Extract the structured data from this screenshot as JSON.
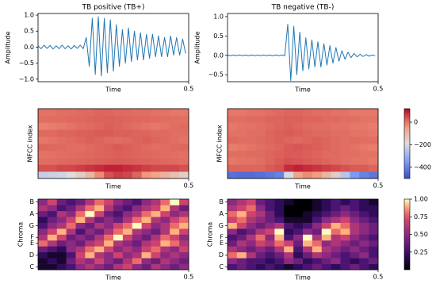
{
  "chart_data": [
    {
      "type": "line",
      "title": "TB positive (TB+)",
      "x_label": "Time",
      "y_label": "Amplitude",
      "color": "#1f77b4",
      "x": [
        0,
        0.01,
        0.02,
        0.03,
        0.04,
        0.05,
        0.06,
        0.07,
        0.08,
        0.09,
        0.1,
        0.11,
        0.12,
        0.13,
        0.14,
        0.15,
        0.16,
        0.17,
        0.18,
        0.19,
        0.2,
        0.21,
        0.22,
        0.23,
        0.24,
        0.25,
        0.26,
        0.27,
        0.28,
        0.29,
        0.3,
        0.31,
        0.32,
        0.33,
        0.34,
        0.35,
        0.36,
        0.37,
        0.38,
        0.39,
        0.4,
        0.41,
        0.42,
        0.43,
        0.44,
        0.45,
        0.46,
        0.47,
        0.48,
        0.49
      ],
      "values": [
        0.04,
        -0.05,
        0.06,
        -0.04,
        0.05,
        -0.06,
        0.04,
        -0.05,
        0.06,
        -0.05,
        0.04,
        -0.06,
        0.05,
        -0.04,
        0.06,
        -0.05,
        0.3,
        -0.6,
        0.9,
        -0.85,
        0.95,
        -0.9,
        0.9,
        -0.8,
        0.85,
        -0.75,
        0.7,
        -0.6,
        0.55,
        -0.5,
        0.6,
        -0.45,
        0.5,
        -0.4,
        0.45,
        -0.4,
        0.4,
        -0.35,
        0.4,
        -0.3,
        0.35,
        -0.3,
        0.3,
        -0.3,
        0.35,
        -0.25,
        0.3,
        -0.25,
        0.25,
        -0.2
      ],
      "xlim": [
        0,
        0.5
      ],
      "xticks": [
        0.5
      ],
      "ylim": [
        -1.08,
        1.05
      ],
      "yticks": [
        {
          "value": -1.0,
          "label": "−1.0"
        },
        {
          "value": -0.5,
          "label": "−0.5"
        },
        {
          "value": 0.0,
          "label": "0.0"
        },
        {
          "value": 0.5,
          "label": "0.5"
        },
        {
          "value": 1.0,
          "label": "1.0"
        }
      ]
    },
    {
      "type": "line",
      "title": "TB negative (TB-)",
      "x_label": "Time",
      "y_label": "Amplitude",
      "color": "#1f77b4",
      "x": [
        0,
        0.01,
        0.02,
        0.03,
        0.04,
        0.05,
        0.06,
        0.07,
        0.08,
        0.09,
        0.1,
        0.11,
        0.12,
        0.13,
        0.14,
        0.15,
        0.16,
        0.17,
        0.18,
        0.19,
        0.2,
        0.21,
        0.22,
        0.23,
        0.24,
        0.25,
        0.26,
        0.27,
        0.28,
        0.29,
        0.3,
        0.31,
        0.32,
        0.33,
        0.34,
        0.35,
        0.36,
        0.37,
        0.38,
        0.39,
        0.4,
        0.41,
        0.42,
        0.43,
        0.44,
        0.45,
        0.46,
        0.47,
        0.48,
        0.49
      ],
      "values": [
        0.01,
        -0.01,
        0.01,
        -0.01,
        0.01,
        -0.01,
        0.01,
        -0.01,
        0.01,
        -0.01,
        0.01,
        -0.01,
        0.01,
        -0.01,
        0.01,
        -0.01,
        0.01,
        -0.01,
        0.01,
        -0.01,
        0.8,
        -0.65,
        0.75,
        -0.5,
        0.6,
        -0.4,
        0.45,
        -0.35,
        0.4,
        -0.3,
        0.35,
        -0.3,
        0.3,
        -0.25,
        0.25,
        -0.2,
        0.2,
        -0.15,
        0.12,
        -0.1,
        0.08,
        -0.06,
        0.05,
        -0.04,
        0.03,
        -0.03,
        0.02,
        -0.02,
        0.01,
        -0.01
      ],
      "xlim": [
        0,
        0.5
      ],
      "xticks": [
        0.5
      ],
      "ylim": [
        -0.68,
        1.08
      ],
      "yticks": [
        {
          "value": -0.5,
          "label": "−0.5"
        },
        {
          "value": 0.0,
          "label": "0.0"
        },
        {
          "value": 0.5,
          "label": "0.5"
        },
        {
          "value": 1.0,
          "label": "1.0"
        }
      ]
    },
    {
      "type": "heatmap",
      "x_label": "Time",
      "y_label": "MFCC index",
      "cmap": "coolwarm",
      "clim": [
        -500,
        120
      ],
      "xlim": [
        0,
        0.5
      ],
      "xticks": [
        0.5
      ],
      "values": [
        [
          -230,
          -220,
          -210,
          -190,
          -150,
          -100,
          -20,
          40,
          60,
          50,
          20,
          -30,
          -60,
          -90,
          -120,
          -150
        ],
        [
          40,
          40,
          50,
          50,
          60,
          70,
          80,
          90,
          90,
          80,
          70,
          60,
          50,
          50,
          50,
          40
        ],
        [
          10,
          12,
          15,
          18,
          20,
          22,
          25,
          28,
          30,
          28,
          25,
          22,
          20,
          18,
          15,
          12
        ],
        [
          5,
          8,
          10,
          12,
          15,
          18,
          20,
          22,
          25,
          22,
          20,
          18,
          15,
          12,
          10,
          8
        ],
        [
          20,
          18,
          15,
          12,
          10,
          15,
          20,
          25,
          30,
          25,
          20,
          15,
          10,
          12,
          15,
          18
        ],
        [
          0,
          5,
          10,
          15,
          20,
          25,
          20,
          15,
          10,
          15,
          20,
          25,
          20,
          15,
          10,
          5
        ],
        [
          15,
          15,
          20,
          20,
          25,
          25,
          30,
          30,
          25,
          25,
          20,
          20,
          15,
          15,
          10,
          10
        ],
        [
          -10,
          -5,
          0,
          5,
          10,
          15,
          20,
          25,
          20,
          15,
          10,
          5,
          0,
          5,
          10,
          15
        ],
        [
          10,
          12,
          14,
          16,
          18,
          20,
          22,
          24,
          22,
          20,
          18,
          16,
          14,
          12,
          10,
          8
        ],
        [
          5,
          5,
          10,
          10,
          15,
          15,
          20,
          20,
          15,
          15,
          10,
          10,
          5,
          5,
          0,
          0
        ]
      ]
    },
    {
      "type": "heatmap",
      "x_label": "Time",
      "y_label": "MFCC index",
      "cmap": "coolwarm",
      "clim": [
        -500,
        120
      ],
      "xlim": [
        0,
        0.5
      ],
      "xticks": [
        0.5
      ],
      "colorbar": {
        "ticks": [
          {
            "value": 0,
            "label": "0"
          },
          {
            "value": -200,
            "label": "−200"
          },
          {
            "value": -400,
            "label": "−400"
          }
        ]
      },
      "values": [
        [
          -430,
          -440,
          -440,
          -430,
          -420,
          -400,
          -200,
          -60,
          -20,
          -40,
          -100,
          -150,
          -250,
          -350,
          -400,
          -420
        ],
        [
          20,
          20,
          20,
          20,
          30,
          40,
          80,
          90,
          80,
          70,
          60,
          50,
          40,
          30,
          30,
          20
        ],
        [
          0,
          5,
          5,
          10,
          20,
          30,
          40,
          35,
          30,
          25,
          20,
          15,
          10,
          5,
          5,
          0
        ],
        [
          10,
          10,
          15,
          15,
          20,
          25,
          30,
          30,
          25,
          20,
          15,
          15,
          10,
          10,
          5,
          5
        ],
        [
          -5,
          0,
          5,
          10,
          15,
          20,
          30,
          35,
          30,
          25,
          20,
          15,
          10,
          5,
          0,
          -5
        ],
        [
          15,
          10,
          10,
          15,
          20,
          25,
          20,
          15,
          20,
          25,
          20,
          15,
          10,
          15,
          10,
          10
        ],
        [
          5,
          5,
          10,
          10,
          20,
          25,
          30,
          25,
          20,
          15,
          15,
          10,
          10,
          5,
          5,
          0
        ],
        [
          0,
          5,
          5,
          10,
          15,
          20,
          25,
          20,
          15,
          10,
          10,
          5,
          5,
          0,
          0,
          -5
        ],
        [
          10,
          10,
          15,
          15,
          20,
          20,
          25,
          25,
          20,
          20,
          15,
          15,
          10,
          10,
          5,
          5
        ],
        [
          0,
          0,
          5,
          5,
          10,
          15,
          20,
          20,
          15,
          10,
          10,
          5,
          5,
          0,
          0,
          0
        ]
      ]
    },
    {
      "type": "heatmap",
      "x_label": "Time",
      "y_label": "Chroma",
      "cmap": "magma",
      "clim": [
        0,
        1
      ],
      "xlim": [
        0,
        0.5
      ],
      "xticks": [
        0.5
      ],
      "y_categories": [
        "C",
        null,
        "D",
        null,
        "E",
        "F",
        null,
        "G",
        null,
        "A",
        null,
        "B"
      ],
      "values": [
        [
          0.1,
          0.1,
          0.2,
          0.3,
          0.5,
          0.6,
          0.5,
          0.4,
          0.6,
          0.7,
          0.5,
          0.4,
          0.6,
          0.5,
          0.4,
          0.5
        ],
        [
          0.1,
          0.2,
          0.1,
          0.4,
          0.6,
          0.5,
          0.7,
          0.5,
          0.4,
          0.6,
          0.8,
          0.5,
          0.4,
          0.6,
          0.5,
          0.4
        ],
        [
          0.2,
          0.1,
          0.1,
          0.3,
          0.7,
          0.9,
          0.6,
          0.5,
          0.7,
          0.5,
          0.6,
          0.9,
          0.7,
          0.5,
          0.6,
          0.5
        ],
        [
          0.4,
          0.3,
          0.2,
          0.5,
          0.6,
          0.8,
          0.9,
          0.7,
          0.5,
          0.6,
          0.5,
          0.7,
          0.8,
          0.6,
          0.5,
          0.7
        ],
        [
          0.8,
          0.6,
          0.4,
          0.5,
          0.4,
          0.6,
          0.7,
          0.9,
          0.6,
          0.5,
          0.4,
          0.6,
          0.7,
          0.9,
          0.8,
          0.6
        ],
        [
          0.6,
          0.9,
          0.7,
          0.4,
          0.5,
          0.4,
          0.6,
          0.8,
          1.0,
          0.7,
          0.5,
          0.4,
          0.6,
          0.8,
          0.7,
          0.5
        ],
        [
          0.5,
          0.7,
          0.9,
          0.6,
          0.3,
          0.5,
          0.4,
          0.6,
          0.8,
          0.9,
          0.6,
          0.5,
          0.4,
          0.6,
          0.9,
          0.7
        ],
        [
          0.3,
          0.5,
          0.6,
          0.8,
          0.5,
          0.4,
          0.6,
          0.5,
          0.7,
          0.8,
          1.0,
          0.7,
          0.5,
          0.6,
          0.8,
          0.9
        ],
        [
          0.2,
          0.4,
          0.5,
          0.7,
          0.9,
          0.6,
          0.4,
          0.5,
          0.4,
          0.6,
          0.8,
          0.9,
          0.6,
          0.5,
          0.7,
          0.8
        ],
        [
          0.4,
          0.3,
          0.6,
          0.5,
          0.8,
          1.0,
          0.7,
          0.4,
          0.3,
          0.5,
          0.6,
          0.8,
          0.9,
          0.7,
          0.5,
          0.6
        ],
        [
          0.6,
          0.5,
          0.3,
          0.4,
          0.6,
          0.8,
          0.9,
          0.6,
          0.4,
          0.3,
          0.5,
          0.6,
          0.7,
          0.9,
          0.6,
          0.4
        ],
        [
          0.5,
          0.7,
          0.4,
          0.3,
          0.4,
          0.6,
          0.8,
          0.7,
          0.5,
          0.4,
          0.3,
          0.5,
          0.6,
          0.8,
          1.0,
          0.7
        ]
      ]
    },
    {
      "type": "heatmap",
      "x_label": "Time",
      "y_label": "Chroma",
      "cmap": "magma",
      "clim": [
        0,
        1
      ],
      "xlim": [
        0,
        0.5
      ],
      "xticks": [
        0.5
      ],
      "y_categories": [
        "C",
        null,
        "D",
        null,
        "E",
        "F",
        null,
        "G",
        null,
        "A",
        null,
        "B"
      ],
      "colorbar": {
        "ticks": [
          {
            "value": 0.25,
            "label": "0.25"
          },
          {
            "value": 0.5,
            "label": "0.50"
          },
          {
            "value": 0.75,
            "label": "0.75"
          },
          {
            "value": 1.0,
            "label": "1.00"
          }
        ]
      },
      "values": [
        [
          0.3,
          0.4,
          0.3,
          0.2,
          0.3,
          0.2,
          0.1,
          0.2,
          0.3,
          0.4,
          0.3,
          0.2,
          0.3,
          0.4,
          0.3,
          0.2
        ],
        [
          0.5,
          0.4,
          0.3,
          0.3,
          0.2,
          0.3,
          0.5,
          0.4,
          0.2,
          0.3,
          0.4,
          0.5,
          0.3,
          0.2,
          0.3,
          0.4
        ],
        [
          0.8,
          0.9,
          0.6,
          0.4,
          0.3,
          0.4,
          0.6,
          0.2,
          0.4,
          0.6,
          0.5,
          0.4,
          0.3,
          0.4,
          0.5,
          0.3
        ],
        [
          0.6,
          0.5,
          0.4,
          0.5,
          0.4,
          0.6,
          0.9,
          0.3,
          0.6,
          0.9,
          0.6,
          0.5,
          0.4,
          0.5,
          0.4,
          0.3
        ],
        [
          0.4,
          0.6,
          0.5,
          0.7,
          0.6,
          0.8,
          0.7,
          0.4,
          0.9,
          0.8,
          0.5,
          0.6,
          0.5,
          0.4,
          0.5,
          0.4
        ],
        [
          0.3,
          0.4,
          0.6,
          0.8,
          0.5,
          0.9,
          0.3,
          0.5,
          1.0,
          0.6,
          0.9,
          0.6,
          0.7,
          0.5,
          0.4,
          0.3
        ],
        [
          0.5,
          0.3,
          0.4,
          0.6,
          0.7,
          1.0,
          0.2,
          0.3,
          0.5,
          0.4,
          1.0,
          0.8,
          0.9,
          0.6,
          0.5,
          0.4
        ],
        [
          0.9,
          0.7,
          0.5,
          0.4,
          0.5,
          0.6,
          0.3,
          0.2,
          0.3,
          0.5,
          0.7,
          0.9,
          0.8,
          0.6,
          0.5,
          0.4
        ],
        [
          0.7,
          0.8,
          0.6,
          0.5,
          0.4,
          0.3,
          0.1,
          0.1,
          0.1,
          0.3,
          0.5,
          0.6,
          0.7,
          0.5,
          0.4,
          0.3
        ],
        [
          0.8,
          0.9,
          0.7,
          0.6,
          0.4,
          0.2,
          0.0,
          0.0,
          0.1,
          0.2,
          0.3,
          0.4,
          0.5,
          0.4,
          0.3,
          0.2
        ],
        [
          0.6,
          0.7,
          0.8,
          0.5,
          0.3,
          0.2,
          0.0,
          0.0,
          0.0,
          0.1,
          0.2,
          0.3,
          0.4,
          0.3,
          0.2,
          0.2
        ],
        [
          0.5,
          0.6,
          0.7,
          0.4,
          0.3,
          0.2,
          0.1,
          0.0,
          0.0,
          0.1,
          0.2,
          0.3,
          0.2,
          0.3,
          0.2,
          0.1
        ]
      ]
    }
  ]
}
